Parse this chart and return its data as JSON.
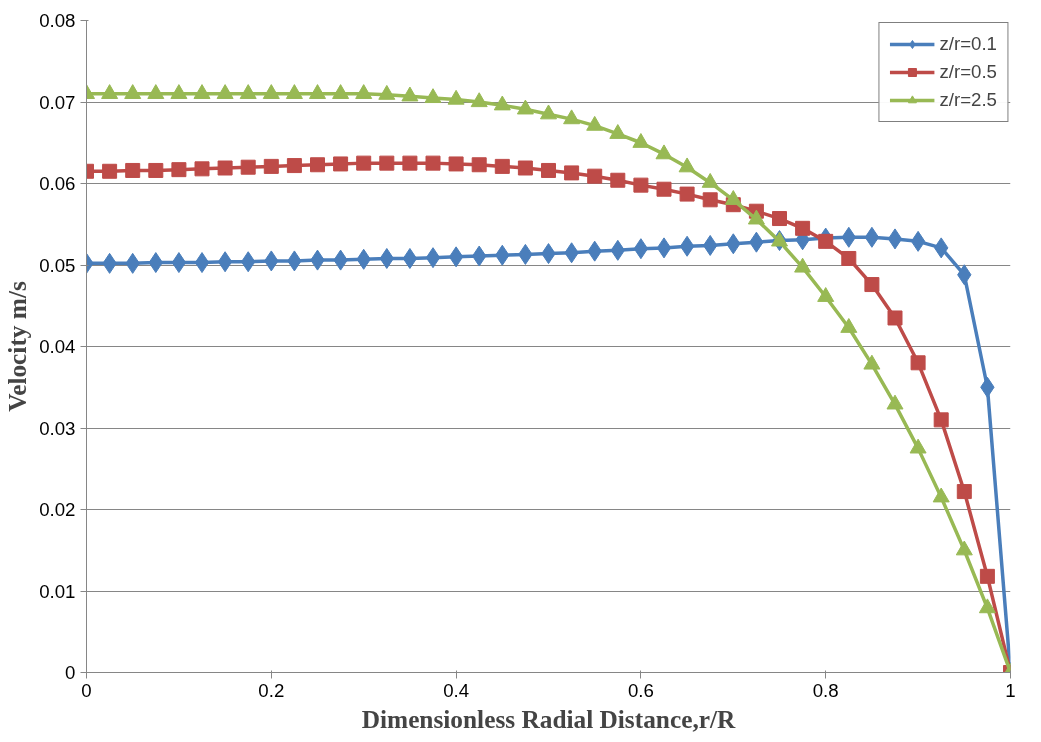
{
  "chart_data": {
    "type": "line",
    "xlabel": "Dimensionless Radial Distance,r/R",
    "ylabel": "Velocity m/s",
    "x": [
      0,
      0.025,
      0.05,
      0.075,
      0.1,
      0.125,
      0.15,
      0.175,
      0.2,
      0.225,
      0.25,
      0.275,
      0.3,
      0.325,
      0.35,
      0.375,
      0.4,
      0.425,
      0.45,
      0.475,
      0.5,
      0.525,
      0.55,
      0.575,
      0.6,
      0.625,
      0.65,
      0.675,
      0.7,
      0.725,
      0.75,
      0.775,
      0.8,
      0.825,
      0.85,
      0.875,
      0.9,
      0.925,
      0.95,
      0.975,
      1
    ],
    "series": [
      {
        "name": "z/r=0.1",
        "color": "#4a7ebb",
        "marker": "diamond",
        "values": [
          0.0502,
          0.0502,
          0.0502,
          0.0503,
          0.0503,
          0.0503,
          0.0504,
          0.0504,
          0.0505,
          0.0505,
          0.0506,
          0.0506,
          0.0507,
          0.0508,
          0.0508,
          0.0509,
          0.051,
          0.0511,
          0.0512,
          0.0513,
          0.0514,
          0.0515,
          0.0517,
          0.0518,
          0.052,
          0.0521,
          0.0523,
          0.0524,
          0.0526,
          0.0528,
          0.053,
          0.0531,
          0.0533,
          0.0534,
          0.0534,
          0.0532,
          0.0529,
          0.0521,
          0.0488,
          0.035,
          0
        ]
      },
      {
        "name": "z/r=0.5",
        "color": "#be4b48",
        "marker": "square",
        "values": [
          0.0615,
          0.0615,
          0.0616,
          0.0616,
          0.0617,
          0.0618,
          0.0619,
          0.062,
          0.0621,
          0.0622,
          0.0623,
          0.0624,
          0.0625,
          0.0625,
          0.0625,
          0.0625,
          0.0624,
          0.0623,
          0.0621,
          0.0619,
          0.0616,
          0.0613,
          0.0609,
          0.0604,
          0.0598,
          0.0593,
          0.0587,
          0.058,
          0.0574,
          0.0566,
          0.0557,
          0.0545,
          0.0529,
          0.0508,
          0.0476,
          0.0435,
          0.038,
          0.031,
          0.0222,
          0.0118,
          0
        ]
      },
      {
        "name": "z/r=2.5",
        "color": "#98b954",
        "marker": "triangle",
        "values": [
          0.071,
          0.071,
          0.071,
          0.071,
          0.071,
          0.071,
          0.071,
          0.071,
          0.071,
          0.071,
          0.071,
          0.071,
          0.071,
          0.0709,
          0.0707,
          0.0705,
          0.0703,
          0.07,
          0.0696,
          0.0691,
          0.0685,
          0.0679,
          0.0671,
          0.0661,
          0.065,
          0.0636,
          0.062,
          0.0601,
          0.058,
          0.0556,
          0.0529,
          0.0497,
          0.0461,
          0.0423,
          0.0378,
          0.0329,
          0.0275,
          0.0215,
          0.015,
          0.0079,
          0
        ]
      }
    ],
    "xlim": [
      0,
      1
    ],
    "xticks": [
      0,
      0.2,
      0.4,
      0.6,
      0.8,
      1
    ],
    "ylim": [
      0,
      0.08
    ],
    "yticks": [
      0,
      0.01,
      0.02,
      0.03,
      0.04,
      0.05,
      0.06,
      0.07,
      0.08
    ],
    "grid": "y",
    "legend": "top right",
    "line_style": "solid"
  }
}
